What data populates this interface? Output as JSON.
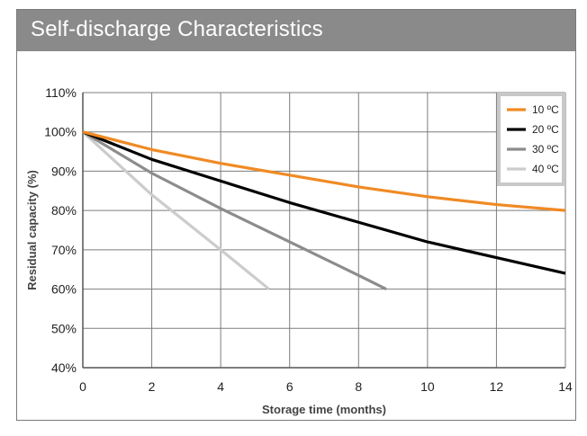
{
  "header": {
    "title": "Self-discharge Characteristics"
  },
  "chart_data": {
    "type": "line",
    "title": "Self-discharge Characteristics",
    "xlabel": "Storage time (months)",
    "ylabel": "Residual capacity (%)",
    "xlim": [
      0,
      14
    ],
    "ylim": [
      40,
      110
    ],
    "x_ticks": [
      0,
      2,
      4,
      6,
      8,
      10,
      12,
      14
    ],
    "x_tick_labels": [
      "0",
      "2",
      "4",
      "6",
      "8",
      "10",
      "12",
      "14"
    ],
    "y_ticks": [
      40,
      50,
      60,
      70,
      80,
      90,
      100,
      110
    ],
    "y_tick_labels": [
      "40%",
      "50%",
      "60%",
      "70%",
      "80%",
      "90%",
      "100%",
      "110%"
    ],
    "grid": true,
    "legend_position": "top-right",
    "series": [
      {
        "name": "10 ºC",
        "color": "#f08a24",
        "x": [
          0,
          2,
          4,
          6,
          8,
          10,
          12,
          14
        ],
        "y": [
          100,
          95.5,
          92,
          89,
          86,
          83.5,
          81.5,
          80
        ]
      },
      {
        "name": "20 ºC",
        "color": "#000000",
        "x": [
          0,
          2,
          4,
          6,
          8,
          10,
          12,
          14
        ],
        "y": [
          100,
          93,
          87.5,
          82,
          77,
          72,
          68,
          64
        ]
      },
      {
        "name": "30 ºC",
        "color": "#8c8c8c",
        "x": [
          0,
          2,
          4,
          6,
          8,
          8.8
        ],
        "y": [
          100,
          89.5,
          80.5,
          72,
          63.5,
          60
        ]
      },
      {
        "name": "40 ºC",
        "color": "#cccccc",
        "x": [
          0,
          2,
          4,
          5.4
        ],
        "y": [
          100,
          84,
          70,
          60
        ]
      }
    ]
  }
}
